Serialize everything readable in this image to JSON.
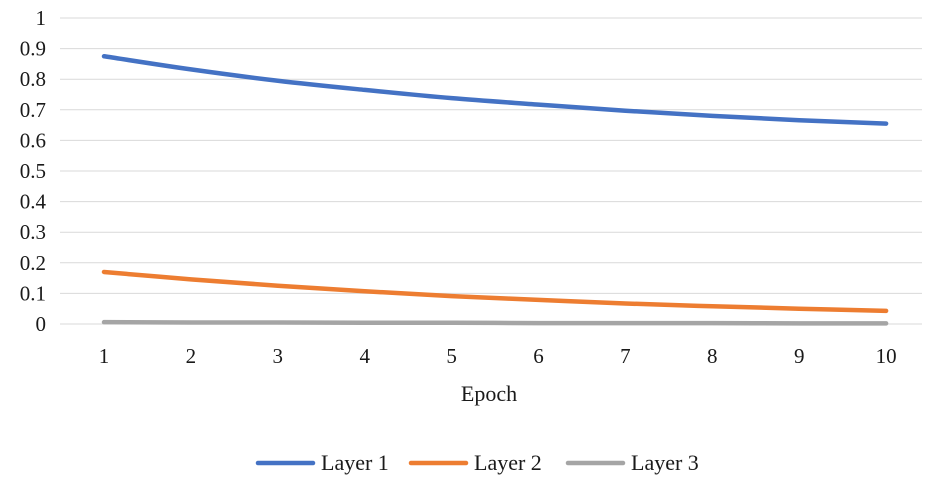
{
  "chart_data": {
    "type": "line",
    "title": "",
    "xlabel": "Epoch",
    "ylabel": "",
    "x": [
      1,
      2,
      3,
      4,
      5,
      6,
      7,
      8,
      9,
      10
    ],
    "x_tick_labels": [
      "1",
      "2",
      "3",
      "4",
      "5",
      "6",
      "7",
      "8",
      "9",
      "10"
    ],
    "ylim": [
      0,
      1
    ],
    "y_ticks": [
      0,
      0.1,
      0.2,
      0.3,
      0.4,
      0.5,
      0.6,
      0.7,
      0.8,
      0.9,
      1
    ],
    "y_tick_labels": [
      "0",
      "0.1",
      "0.2",
      "0.3",
      "0.4",
      "0.5",
      "0.6",
      "0.7",
      "0.8",
      "0.9",
      "1"
    ],
    "grid": true,
    "legend": "bottom",
    "series": [
      {
        "name": "Layer 1",
        "color": "#4472C4",
        "values": [
          0.875,
          0.832,
          0.795,
          0.765,
          0.738,
          0.717,
          0.697,
          0.68,
          0.666,
          0.655
        ]
      },
      {
        "name": "Layer 2",
        "color": "#ED7D31",
        "values": [
          0.17,
          0.146,
          0.125,
          0.107,
          0.091,
          0.079,
          0.067,
          0.058,
          0.05,
          0.043
        ]
      },
      {
        "name": "Layer 3",
        "color": "#A5A5A5",
        "values": [
          0.006,
          0.005,
          0.005,
          0.004,
          0.004,
          0.003,
          0.003,
          0.003,
          0.002,
          0.002
        ]
      }
    ]
  }
}
